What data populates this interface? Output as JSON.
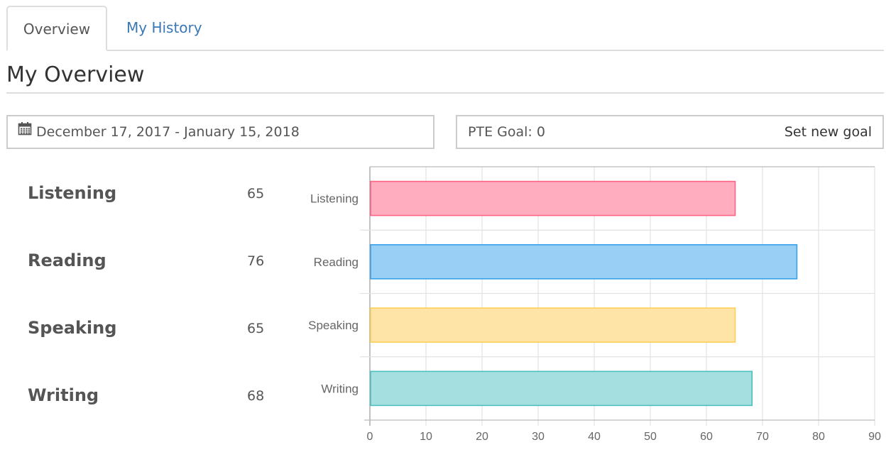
{
  "tabs": [
    {
      "label": "Overview",
      "active": true
    },
    {
      "label": "My History",
      "active": false
    }
  ],
  "page_title": "My Overview",
  "date_range": {
    "text": "December 17, 2017 - January 15, 2018",
    "icon": "calendar-icon"
  },
  "goal": {
    "text": "PTE Goal: 0",
    "action": "Set new goal"
  },
  "skills": [
    {
      "name": "Listening",
      "score": "65"
    },
    {
      "name": "Reading",
      "score": "76"
    },
    {
      "name": "Speaking",
      "score": "65"
    },
    {
      "name": "Writing",
      "score": "68"
    }
  ],
  "chart_data": {
    "type": "bar",
    "orientation": "horizontal",
    "categories": [
      "Listening",
      "Reading",
      "Speaking",
      "Writing"
    ],
    "values": [
      65,
      76,
      65,
      68
    ],
    "colors": [
      "#ffadbf",
      "#9acff5",
      "#ffe4a8",
      "#a6dfe0"
    ],
    "borders": [
      "#ff6384",
      "#36a2eb",
      "#ffce56",
      "#4bc0c0"
    ],
    "xlim": [
      0,
      90
    ],
    "xticks": [
      0,
      10,
      20,
      30,
      40,
      50,
      60,
      70,
      80,
      90
    ],
    "grid": true,
    "title": "",
    "xlabel": "",
    "ylabel": ""
  }
}
